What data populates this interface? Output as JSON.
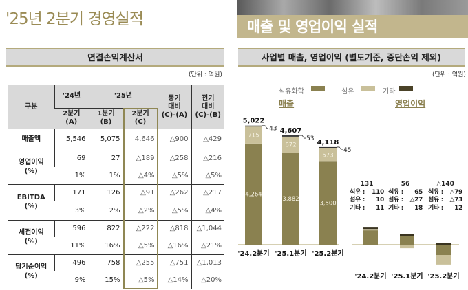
{
  "title": "'25년 2분기 경영실적",
  "left": {
    "section_title": "연결손익계산서",
    "unit": "(단위 : 억원)",
    "table": {
      "h_category": "구분",
      "h_24": "'24년",
      "h_25": "'25년",
      "h_yoy": "동기\n대비\n(C)-(A)",
      "h_qoq": "전기\n대비\n(C)-(B)",
      "h_a": "2분기\n(A)",
      "h_b": "1분기\n(B)",
      "h_c": "2분기\n(C)",
      "rows": [
        {
          "label": "매출액",
          "v": [
            "5,546",
            "5,075",
            "4,646",
            "△900",
            "△429"
          ]
        },
        {
          "label": "영업이익\n(%)",
          "v": [
            "69",
            "27",
            "△189",
            "△258",
            "△216"
          ],
          "p": [
            "1%",
            "1%",
            "△4%",
            "△5%",
            "△5%"
          ]
        },
        {
          "label": "EBITDA\n(%)",
          "v": [
            "171",
            "126",
            "△91",
            "△262",
            "△217"
          ],
          "p": [
            "3%",
            "2%",
            "△2%",
            "△5%",
            "△4%"
          ]
        },
        {
          "label": "세전이익\n(%)",
          "v": [
            "596",
            "822",
            "△222",
            "△818",
            "△1,044"
          ],
          "p": [
            "11%",
            "16%",
            "△5%",
            "△16%",
            "△21%"
          ]
        },
        {
          "label": "당기순이익\n(%)",
          "v": [
            "496",
            "758",
            "△255",
            "△751",
            "△1,013"
          ],
          "p": [
            "9%",
            "15%",
            "△5%",
            "△14%",
            "△20%"
          ]
        }
      ]
    }
  },
  "right": {
    "banner": "매출 및 영업이익 실적",
    "section_title": "사업별 매출, 영업이익 (별도기준, 중단손익 제외)",
    "unit": "(단위 : 억원)",
    "legend": [
      "석유화학",
      "섬유",
      "기타"
    ],
    "sales_title": "매출",
    "op_title": "영업이익",
    "op_labels": [
      {
        "total": "131",
        "rows": [
          [
            "석유 :",
            "110"
          ],
          [
            "섬유 :",
            "10"
          ],
          [
            "기타 :",
            "11"
          ]
        ]
      },
      {
        "total": "56",
        "rows": [
          [
            "석유 :",
            "65"
          ],
          [
            "섬유 :",
            "△27"
          ],
          [
            "기타 :",
            "18"
          ]
        ]
      },
      {
        "total": "△140",
        "rows": [
          [
            "석유 :",
            "△79"
          ],
          [
            "섬유 :",
            "△73"
          ],
          [
            "기타 :",
            "12"
          ]
        ]
      }
    ]
  },
  "colors": {
    "petro": "#8a8150",
    "fiber": "#c9c09a",
    "other": "#4a4228",
    "accent": "#9a8b55"
  },
  "chart_data": [
    {
      "type": "bar",
      "stacked": true,
      "title": "매출",
      "categories": [
        "'24.2분기",
        "'25.1분기",
        "'25.2분기"
      ],
      "series": [
        {
          "name": "석유화학",
          "values": [
            4264,
            3882,
            3500
          ]
        },
        {
          "name": "섬유",
          "values": [
            715,
            672,
            573
          ]
        },
        {
          "name": "기타",
          "values": [
            43,
            53,
            45
          ]
        }
      ],
      "totals": [
        5022,
        4607,
        4118
      ],
      "total_labels": [
        "5,022",
        "4,607",
        "4,118"
      ],
      "value_labels": [
        [
          "4,264",
          "3,882",
          "3,500"
        ],
        [
          "715",
          "672",
          "573"
        ],
        [
          "43",
          "53",
          "45"
        ]
      ]
    },
    {
      "type": "bar",
      "stacked": true,
      "title": "영업이익",
      "categories": [
        "'24.2분기",
        "'25.1분기",
        "'25.2분기"
      ],
      "series": [
        {
          "name": "석유화학",
          "values": [
            110,
            65,
            -79
          ]
        },
        {
          "name": "섬유",
          "values": [
            10,
            -27,
            -73
          ]
        },
        {
          "name": "기타",
          "values": [
            11,
            18,
            12
          ]
        }
      ],
      "totals": [
        131,
        56,
        -140
      ]
    }
  ]
}
